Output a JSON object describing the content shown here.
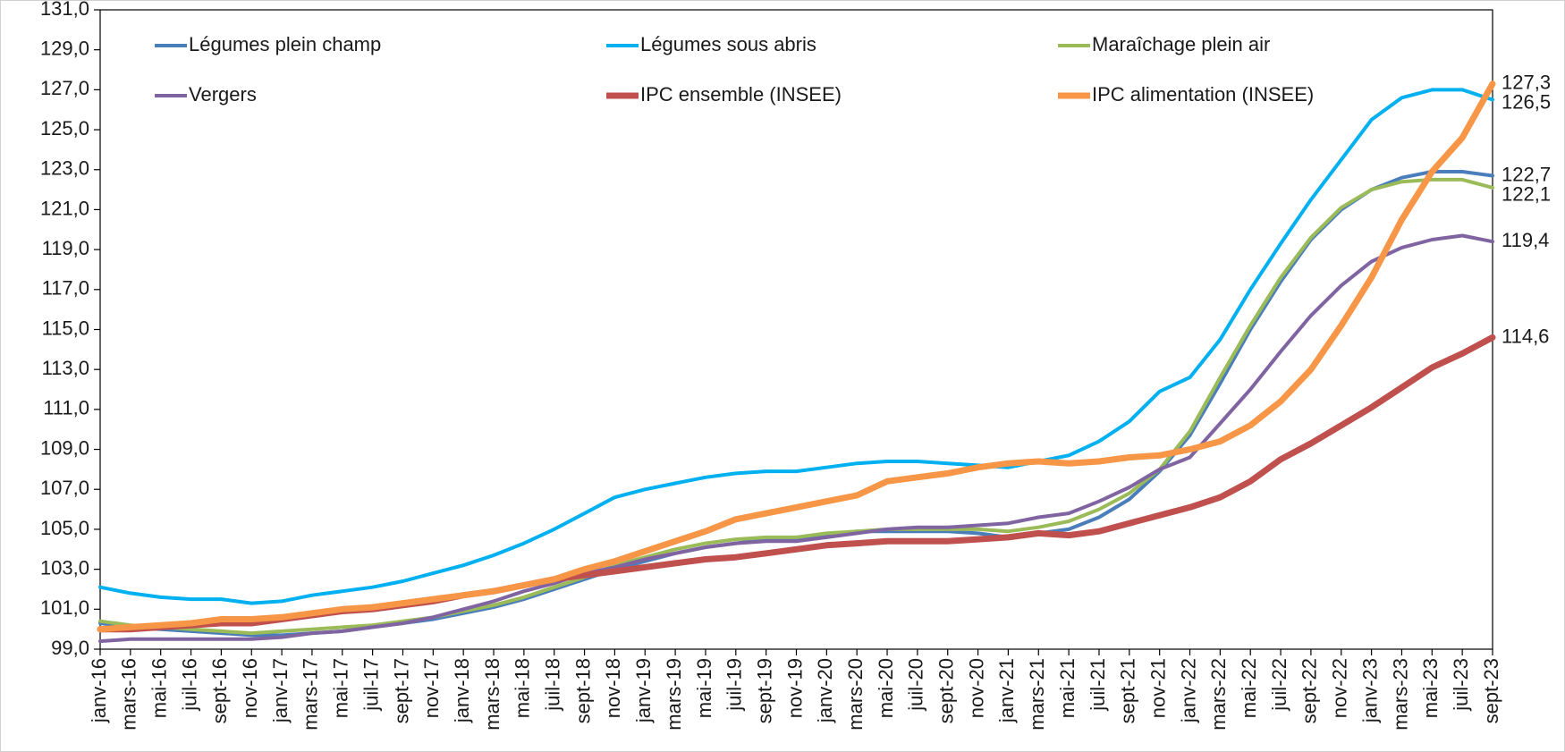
{
  "chart_data": {
    "type": "line",
    "categories": [
      "janv-16",
      "mars-16",
      "mai-16",
      "juil-16",
      "sept-16",
      "nov-16",
      "janv-17",
      "mars-17",
      "mai-17",
      "juil-17",
      "sept-17",
      "nov-17",
      "janv-18",
      "mars-18",
      "mai-18",
      "juil-18",
      "sept-18",
      "nov-18",
      "janv-19",
      "mars-19",
      "mai-19",
      "juil-19",
      "sept-19",
      "nov-19",
      "janv-20",
      "mars-20",
      "mai-20",
      "juil-20",
      "sept-20",
      "nov-20",
      "janv-21",
      "mars-21",
      "mai-21",
      "juil-21",
      "sept-21",
      "nov-21",
      "janv-22",
      "mars-22",
      "mai-22",
      "juil-22",
      "sept-22",
      "nov-22",
      "janv-23",
      "mars-23",
      "mai-23",
      "juil-23",
      "sept-23"
    ],
    "ylim": [
      99,
      131
    ],
    "yticks": [
      {
        "value": 99,
        "label": "99,0"
      },
      {
        "value": 101,
        "label": "101,0"
      },
      {
        "value": 103,
        "label": "103,0"
      },
      {
        "value": 105,
        "label": "105,0"
      },
      {
        "value": 107,
        "label": "107,0"
      },
      {
        "value": 109,
        "label": "109,0"
      },
      {
        "value": 111,
        "label": "111,0"
      },
      {
        "value": 113,
        "label": "113,0"
      },
      {
        "value": 115,
        "label": "115,0"
      },
      {
        "value": 117,
        "label": "117,0"
      },
      {
        "value": 119,
        "label": "119,0"
      },
      {
        "value": 121,
        "label": "121,0"
      },
      {
        "value": 123,
        "label": "123,0"
      },
      {
        "value": 125,
        "label": "125,0"
      },
      {
        "value": 127,
        "label": "127,0"
      },
      {
        "value": 129,
        "label": "129,0"
      },
      {
        "value": 131,
        "label": "131,0"
      }
    ],
    "grid": false,
    "legend": "top",
    "series": [
      {
        "name": "Légumes plein champ",
        "color": "#4a7ebb",
        "line_width": 4,
        "values": [
          100.3,
          100.1,
          100.0,
          99.9,
          99.8,
          99.7,
          99.7,
          99.8,
          99.9,
          100.1,
          100.3,
          100.5,
          100.8,
          101.1,
          101.5,
          102.0,
          102.5,
          103.0,
          103.4,
          103.8,
          104.1,
          104.3,
          104.5,
          104.5,
          104.7,
          104.9,
          104.9,
          104.9,
          104.9,
          104.8,
          104.6,
          104.8,
          105.0,
          105.6,
          106.5,
          107.9,
          109.7,
          112.3,
          115.0,
          117.4,
          119.5,
          121.0,
          122.0,
          122.6,
          122.9,
          122.9,
          122.7
        ],
        "value_labels": [
          null,
          null,
          null,
          null,
          null,
          null,
          null,
          null,
          null,
          null,
          null,
          null,
          null,
          null,
          null,
          null,
          null,
          null,
          null,
          null,
          null,
          null,
          null,
          null,
          null,
          null,
          null,
          null,
          null,
          null,
          null,
          null,
          null,
          null,
          null,
          null,
          null,
          null,
          null,
          null,
          null,
          null,
          null,
          null,
          null,
          null,
          "122,7"
        ]
      },
      {
        "name": "Légumes sous abris",
        "color": "#00b0f0",
        "line_width": 4,
        "values": [
          102.1,
          101.8,
          101.6,
          101.5,
          101.5,
          101.3,
          101.4,
          101.7,
          101.9,
          102.1,
          102.4,
          102.8,
          103.2,
          103.7,
          104.3,
          105.0,
          105.8,
          106.6,
          107.0,
          107.3,
          107.6,
          107.8,
          107.9,
          107.9,
          108.1,
          108.3,
          108.4,
          108.4,
          108.3,
          108.2,
          108.1,
          108.4,
          108.7,
          109.4,
          110.4,
          111.9,
          112.6,
          114.5,
          117.0,
          119.3,
          121.5,
          123.5,
          125.5,
          126.6,
          127.0,
          127.0,
          126.5
        ],
        "value_labels": [
          null,
          null,
          null,
          null,
          null,
          null,
          null,
          null,
          null,
          null,
          null,
          null,
          null,
          null,
          null,
          null,
          null,
          null,
          null,
          null,
          null,
          null,
          null,
          null,
          null,
          null,
          null,
          null,
          null,
          null,
          null,
          null,
          null,
          null,
          null,
          null,
          null,
          null,
          null,
          null,
          null,
          null,
          null,
          null,
          null,
          null,
          "126,5"
        ]
      },
      {
        "name": "Maraîchage plein air",
        "color": "#9bbb59",
        "line_width": 4,
        "values": [
          100.4,
          100.2,
          100.1,
          100.0,
          99.9,
          99.8,
          99.9,
          100.0,
          100.1,
          100.2,
          100.4,
          100.6,
          100.9,
          101.2,
          101.6,
          102.1,
          102.6,
          103.2,
          103.6,
          104.0,
          104.3,
          104.5,
          104.6,
          104.6,
          104.8,
          104.9,
          105.0,
          105.0,
          105.0,
          105.0,
          104.9,
          105.1,
          105.4,
          106.0,
          106.8,
          108.0,
          109.9,
          112.6,
          115.2,
          117.6,
          119.6,
          121.1,
          122.0,
          122.4,
          122.5,
          122.5,
          122.1
        ],
        "value_labels": [
          null,
          null,
          null,
          null,
          null,
          null,
          null,
          null,
          null,
          null,
          null,
          null,
          null,
          null,
          null,
          null,
          null,
          null,
          null,
          null,
          null,
          null,
          null,
          null,
          null,
          null,
          null,
          null,
          null,
          null,
          null,
          null,
          null,
          null,
          null,
          null,
          null,
          null,
          null,
          null,
          null,
          null,
          null,
          null,
          null,
          null,
          "122,1"
        ]
      },
      {
        "name": "Vergers",
        "color": "#8064a2",
        "line_width": 4,
        "values": [
          99.4,
          99.5,
          99.5,
          99.5,
          99.5,
          99.5,
          99.6,
          99.8,
          99.9,
          100.1,
          100.3,
          100.6,
          101.0,
          101.4,
          101.9,
          102.3,
          102.8,
          103.1,
          103.5,
          103.8,
          104.1,
          104.3,
          104.4,
          104.4,
          104.6,
          104.8,
          105.0,
          105.1,
          105.1,
          105.2,
          105.3,
          105.6,
          105.8,
          106.4,
          107.1,
          108.0,
          108.6,
          110.3,
          112.0,
          113.9,
          115.7,
          117.2,
          118.4,
          119.1,
          119.5,
          119.7,
          119.4
        ],
        "value_labels": [
          null,
          null,
          null,
          null,
          null,
          null,
          null,
          null,
          null,
          null,
          null,
          null,
          null,
          null,
          null,
          null,
          null,
          null,
          null,
          null,
          null,
          null,
          null,
          null,
          null,
          null,
          null,
          null,
          null,
          null,
          null,
          null,
          null,
          null,
          null,
          null,
          null,
          null,
          null,
          null,
          null,
          null,
          null,
          null,
          null,
          null,
          "119,4"
        ]
      },
      {
        "name": "IPC  ensemble (INSEE)",
        "color": "#c0504d",
        "line_width": 7,
        "values": [
          100.0,
          100.0,
          100.1,
          100.2,
          100.3,
          100.3,
          100.5,
          100.7,
          100.9,
          101.0,
          101.2,
          101.4,
          101.7,
          101.9,
          102.2,
          102.5,
          102.7,
          102.9,
          103.1,
          103.3,
          103.5,
          103.6,
          103.8,
          104.0,
          104.2,
          104.3,
          104.4,
          104.4,
          104.4,
          104.5,
          104.6,
          104.8,
          104.7,
          104.9,
          105.3,
          105.7,
          106.1,
          106.6,
          107.4,
          108.5,
          109.3,
          110.2,
          111.1,
          112.1,
          113.1,
          113.8,
          114.6
        ],
        "value_labels": [
          null,
          null,
          null,
          null,
          null,
          null,
          null,
          null,
          null,
          null,
          null,
          null,
          null,
          null,
          null,
          null,
          null,
          null,
          null,
          null,
          null,
          null,
          null,
          null,
          null,
          null,
          null,
          null,
          null,
          null,
          null,
          null,
          null,
          null,
          null,
          null,
          null,
          null,
          null,
          null,
          null,
          null,
          null,
          null,
          null,
          null,
          "114,6"
        ]
      },
      {
        "name": "IPC alimentation (INSEE)",
        "color": "#f79646",
        "line_width": 7,
        "values": [
          100.0,
          100.1,
          100.2,
          100.3,
          100.5,
          100.5,
          100.6,
          100.8,
          101.0,
          101.1,
          101.3,
          101.5,
          101.7,
          101.9,
          102.2,
          102.5,
          103.0,
          103.4,
          103.9,
          104.4,
          104.9,
          105.5,
          105.8,
          106.1,
          106.4,
          106.7,
          107.4,
          107.6,
          107.8,
          108.1,
          108.3,
          108.4,
          108.3,
          108.4,
          108.6,
          108.7,
          109.0,
          109.4,
          110.2,
          111.4,
          113.0,
          115.2,
          117.6,
          120.5,
          122.9,
          124.6,
          127.3
        ],
        "value_labels": [
          null,
          null,
          null,
          null,
          null,
          null,
          null,
          null,
          null,
          null,
          null,
          null,
          null,
          null,
          null,
          null,
          null,
          null,
          null,
          null,
          null,
          null,
          null,
          null,
          null,
          null,
          null,
          null,
          null,
          null,
          null,
          null,
          null,
          null,
          null,
          null,
          null,
          null,
          null,
          null,
          null,
          null,
          null,
          null,
          null,
          null,
          "127,3"
        ]
      }
    ]
  }
}
